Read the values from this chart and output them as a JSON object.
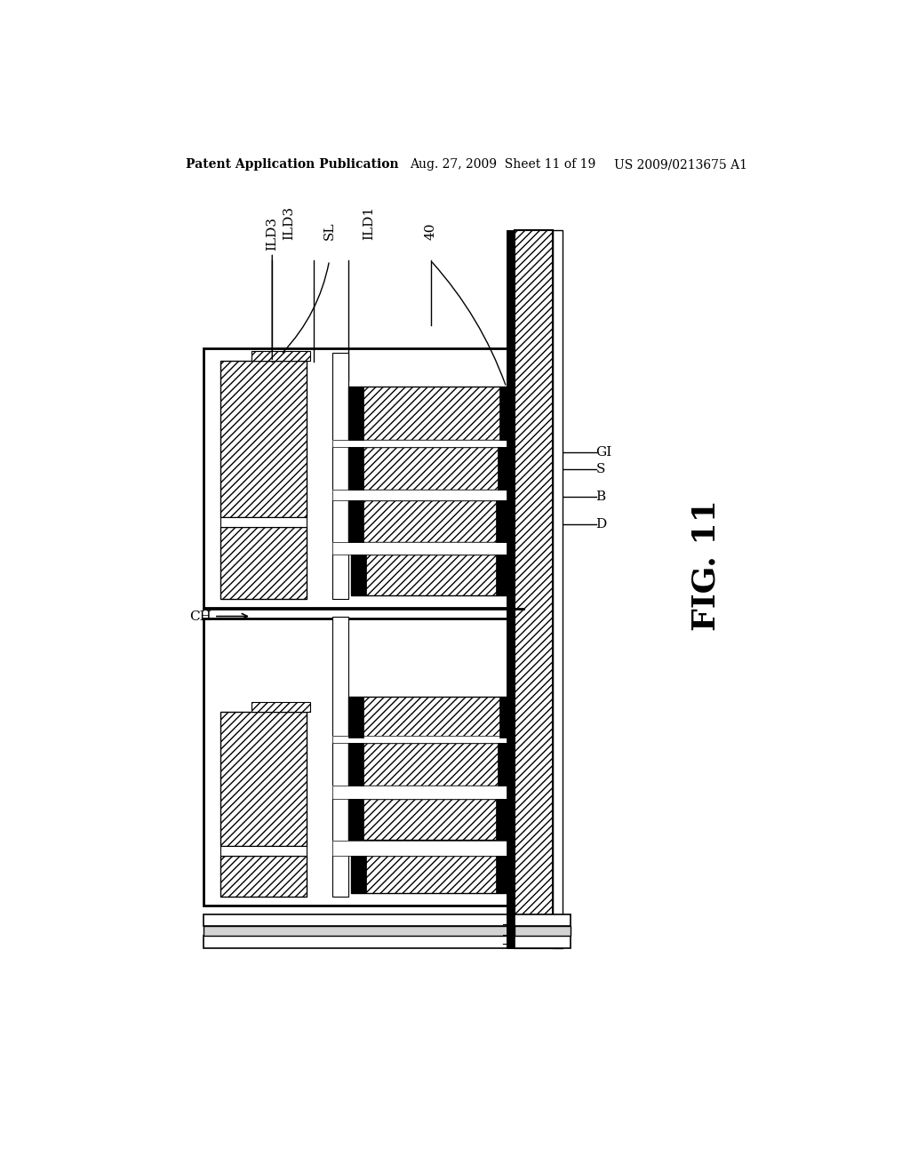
{
  "title_left": "Patent Application Publication",
  "title_mid": "Aug. 27, 2009  Sheet 11 of 19",
  "title_right": "US 2009/0213675 A1",
  "fig_label": "FIG. 11",
  "background": "#ffffff"
}
